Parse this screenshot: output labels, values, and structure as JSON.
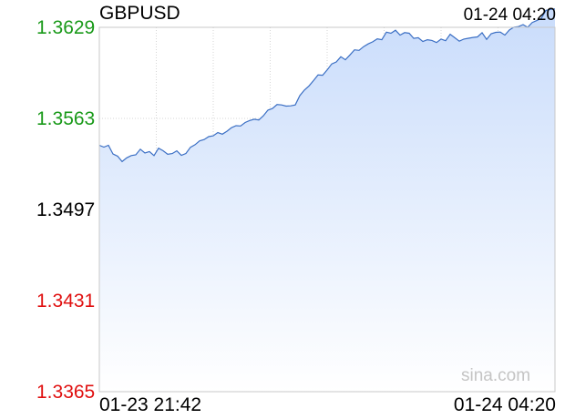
{
  "chart_data": {
    "type": "area",
    "title": "GBPUSD",
    "timestamp": "01-24 04:20",
    "watermark": "sina.com",
    "reference_value": 1.3497,
    "y_ticks": [
      "1.3629",
      "1.3563",
      "1.3497",
      "1.3431",
      "1.3365"
    ],
    "y_tick_values": [
      1.3629,
      1.3563,
      1.3497,
      1.3431,
      1.3365
    ],
    "x_ticks": [
      "01-23 21:42",
      "01-24 04:20"
    ],
    "ylim": [
      1.3365,
      1.3629
    ],
    "grid": true,
    "colors": {
      "up": "#1a9a1a",
      "down": "#e01010",
      "neutral": "#000000",
      "line": "#3b6fc4",
      "fill_top": "#c9dcfb",
      "fill_bottom": "#ffffff"
    },
    "series": [
      {
        "x": [
          0,
          2,
          4,
          6,
          8,
          10,
          12,
          14,
          16,
          18,
          20,
          22,
          24,
          26,
          28,
          30,
          32,
          34,
          36,
          38,
          40,
          42,
          44,
          46,
          48,
          50,
          52,
          54,
          56,
          58,
          60,
          62,
          64,
          66,
          68,
          70,
          72,
          74,
          76,
          78,
          80,
          82,
          84,
          86,
          88,
          90,
          92,
          94,
          96,
          98,
          100,
          102,
          104,
          106,
          108,
          110,
          112,
          114,
          116,
          118,
          120,
          122,
          124,
          126,
          128,
          130,
          132,
          134,
          136,
          138,
          140,
          142,
          144,
          146,
          148,
          150,
          152,
          154,
          156,
          158,
          160,
          162,
          164,
          166,
          168,
          170,
          172,
          174,
          176,
          178,
          180,
          182,
          184,
          186,
          188,
          190,
          192,
          194,
          196,
          198,
          200
        ],
        "values": [
          1.35435,
          1.35422,
          1.35435,
          1.35372,
          1.35357,
          1.35317,
          1.35344,
          1.35361,
          1.35366,
          1.35407,
          1.35379,
          1.3539,
          1.35361,
          1.35414,
          1.35396,
          1.3537,
          1.35375,
          1.35395,
          1.35362,
          1.35376,
          1.35421,
          1.35439,
          1.35467,
          1.35477,
          1.35498,
          1.35504,
          1.35528,
          1.35516,
          1.35537,
          1.35563,
          1.35577,
          1.35575,
          1.356,
          1.35615,
          1.35624,
          1.35619,
          1.35649,
          1.3569,
          1.35702,
          1.3573,
          1.35728,
          1.35719,
          1.35721,
          1.35728,
          1.35795,
          1.35835,
          1.35865,
          1.35904,
          1.35945,
          1.35943,
          1.35981,
          1.36025,
          1.36039,
          1.36077,
          1.36055,
          1.3609,
          1.36127,
          1.36123,
          1.3615,
          1.3617,
          1.36185,
          1.36207,
          1.362,
          1.36255,
          1.36247,
          1.36269,
          1.36234,
          1.36252,
          1.36247,
          1.3621,
          1.36215,
          1.36187,
          1.362,
          1.36195,
          1.3618,
          1.36205,
          1.36193,
          1.3624,
          1.36215,
          1.3619,
          1.36205,
          1.36211,
          1.36217,
          1.36221,
          1.36251,
          1.36203,
          1.36244,
          1.36254,
          1.36256,
          1.36234,
          1.36271,
          1.36291,
          1.36295,
          1.3631,
          1.3629,
          1.36325,
          1.36339,
          1.36355,
          1.36413,
          1.3642,
          1.36423
        ]
      }
    ]
  }
}
